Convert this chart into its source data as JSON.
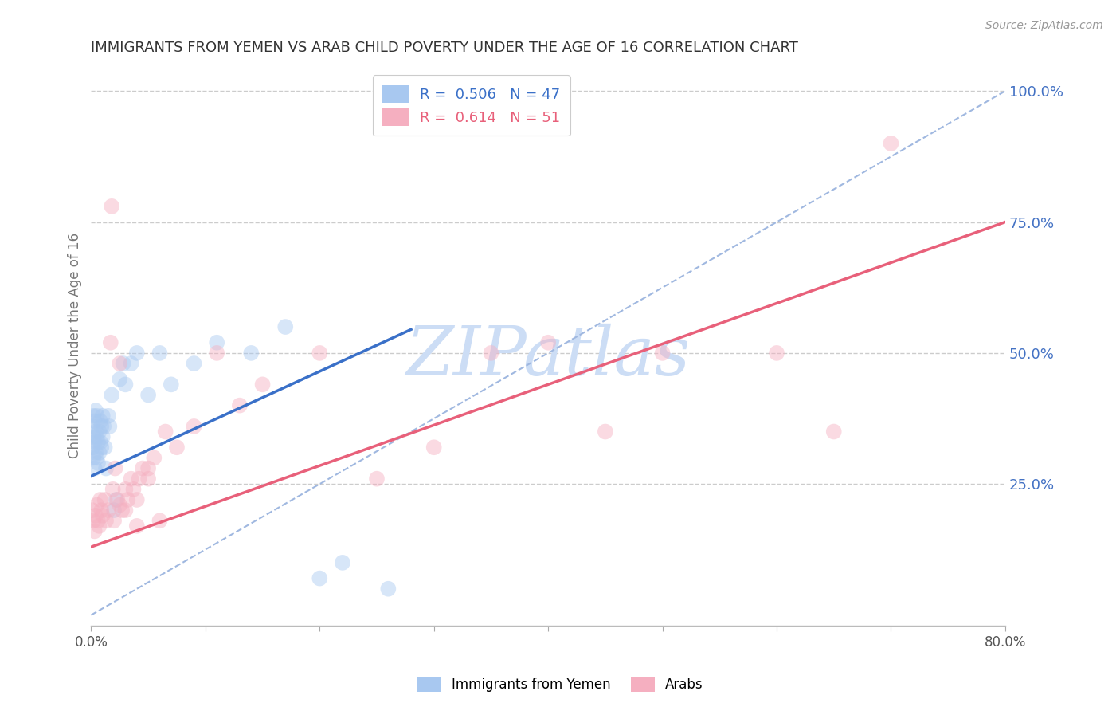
{
  "title": "IMMIGRANTS FROM YEMEN VS ARAB CHILD POVERTY UNDER THE AGE OF 16 CORRELATION CHART",
  "source": "Source: ZipAtlas.com",
  "ylabel": "Child Poverty Under the Age of 16",
  "xlim": [
    0.0,
    0.8
  ],
  "ylim": [
    -0.02,
    1.05
  ],
  "legend_blue_label": "Immigrants from Yemen",
  "legend_pink_label": "Arabs",
  "legend_R_blue": "R =  0.506",
  "legend_N_blue": "N = 47",
  "legend_R_pink": "R =  0.614",
  "legend_N_pink": "N = 51",
  "blue_color": "#a8c8f0",
  "pink_color": "#f5afc0",
  "blue_line_color": "#3a70c8",
  "pink_line_color": "#e8607a",
  "grid_color": "#cccccc",
  "title_color": "#333333",
  "axis_label_color": "#777777",
  "right_tick_color": "#4472c4",
  "watermark_color": "#ccddf5",
  "blue_scatter_x": [
    0.001,
    0.001,
    0.002,
    0.002,
    0.002,
    0.003,
    0.003,
    0.003,
    0.004,
    0.004,
    0.004,
    0.005,
    0.005,
    0.005,
    0.006,
    0.006,
    0.007,
    0.007,
    0.008,
    0.008,
    0.009,
    0.009,
    0.01,
    0.01,
    0.011,
    0.012,
    0.013,
    0.015,
    0.016,
    0.018,
    0.02,
    0.022,
    0.025,
    0.028,
    0.03,
    0.035,
    0.04,
    0.05,
    0.06,
    0.07,
    0.09,
    0.11,
    0.14,
    0.17,
    0.2,
    0.22,
    0.26
  ],
  "blue_scatter_y": [
    0.32,
    0.36,
    0.3,
    0.34,
    0.38,
    0.28,
    0.33,
    0.37,
    0.31,
    0.35,
    0.39,
    0.3,
    0.34,
    0.38,
    0.29,
    0.33,
    0.31,
    0.35,
    0.33,
    0.37,
    0.32,
    0.36,
    0.34,
    0.38,
    0.36,
    0.32,
    0.28,
    0.38,
    0.36,
    0.42,
    0.2,
    0.22,
    0.45,
    0.48,
    0.44,
    0.48,
    0.5,
    0.42,
    0.5,
    0.44,
    0.48,
    0.52,
    0.5,
    0.55,
    0.07,
    0.1,
    0.05
  ],
  "pink_scatter_x": [
    0.001,
    0.002,
    0.003,
    0.004,
    0.005,
    0.006,
    0.007,
    0.008,
    0.009,
    0.01,
    0.012,
    0.013,
    0.015,
    0.017,
    0.019,
    0.021,
    0.023,
    0.025,
    0.027,
    0.03,
    0.032,
    0.035,
    0.037,
    0.04,
    0.042,
    0.045,
    0.05,
    0.055,
    0.06,
    0.065,
    0.075,
    0.09,
    0.11,
    0.13,
    0.15,
    0.2,
    0.25,
    0.3,
    0.35,
    0.4,
    0.45,
    0.5,
    0.6,
    0.65,
    0.7,
    0.02,
    0.03,
    0.04,
    0.05,
    0.018,
    0.025
  ],
  "pink_scatter_y": [
    0.2,
    0.18,
    0.16,
    0.19,
    0.21,
    0.18,
    0.17,
    0.22,
    0.2,
    0.19,
    0.22,
    0.18,
    0.2,
    0.52,
    0.24,
    0.28,
    0.22,
    0.21,
    0.2,
    0.24,
    0.22,
    0.26,
    0.24,
    0.22,
    0.26,
    0.28,
    0.26,
    0.3,
    0.18,
    0.35,
    0.32,
    0.36,
    0.5,
    0.4,
    0.44,
    0.5,
    0.26,
    0.32,
    0.5,
    0.52,
    0.35,
    0.5,
    0.5,
    0.35,
    0.9,
    0.18,
    0.2,
    0.17,
    0.28,
    0.78,
    0.48
  ],
  "blue_line_x": [
    0.0,
    0.28
  ],
  "blue_line_y": [
    0.265,
    0.545
  ],
  "pink_line_x": [
    0.0,
    0.8
  ],
  "pink_line_y": [
    0.13,
    0.75
  ],
  "diag_line_x": [
    0.0,
    0.8
  ],
  "diag_line_y": [
    0.0,
    1.0
  ],
  "bg_color": "#ffffff",
  "scatter_size": 200,
  "scatter_alpha": 0.45
}
